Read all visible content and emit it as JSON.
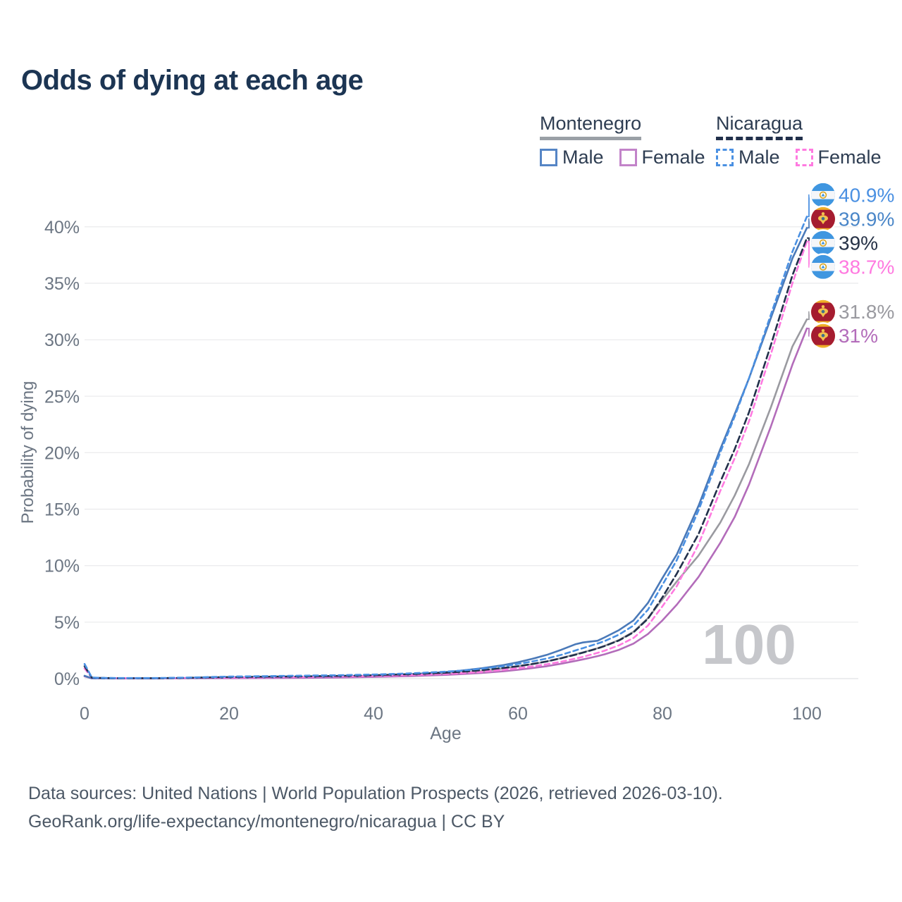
{
  "title": "Odds of dying at each age",
  "legend": {
    "groups": [
      {
        "country": "Montenegro",
        "underline_color": "#9aa0a6",
        "underline_style": "solid",
        "items": [
          {
            "label": "Male",
            "color": "#5585c5",
            "dashed": false
          },
          {
            "label": "Female",
            "color": "#c283c9",
            "dashed": false
          }
        ]
      },
      {
        "country": "Nicaragua",
        "underline_color": "#22304b",
        "underline_style": "dashed",
        "items": [
          {
            "label": "Male",
            "color": "#4a90e2",
            "dashed": true
          },
          {
            "label": "Female",
            "color": "#ff7ae0",
            "dashed": true
          }
        ]
      }
    ]
  },
  "watermark": "100",
  "footer": {
    "line1": "Data sources: United Nations | World Population Prospects (2026, retrieved 2026-03-10).",
    "line2": "GeoRank.org/life-expectancy/montenegro/nicaragua | CC BY"
  },
  "chart_data": {
    "type": "line",
    "title": "Odds of dying at each age",
    "xlabel": "Age",
    "ylabel": "Probability of dying",
    "xlim": [
      0,
      100
    ],
    "ylim": [
      0,
      42
    ],
    "grid": true,
    "legend_position": "top-right",
    "x_ticks": [
      0,
      20,
      40,
      60,
      80,
      100
    ],
    "y_ticks": [
      0,
      5,
      10,
      15,
      20,
      25,
      30,
      35,
      40
    ],
    "y_tick_labels": [
      "0%",
      "5%",
      "10%",
      "15%",
      "20%",
      "25%",
      "30%",
      "35%",
      "40%"
    ],
    "ages": [
      0,
      1,
      2,
      5,
      10,
      15,
      20,
      25,
      30,
      35,
      40,
      45,
      50,
      52,
      55,
      58,
      60,
      62,
      64,
      66,
      68,
      69,
      70,
      71,
      72,
      74,
      76,
      78,
      80,
      82,
      85,
      88,
      90,
      92,
      95,
      98,
      100
    ],
    "series": [
      {
        "name": "Nicaragua Male",
        "country": "nicaragua",
        "sex": "male",
        "color": "#4a90e2",
        "dashed": true,
        "dash_pattern": "7 5",
        "end_label": "40.9%",
        "label_color": "#4a90e2",
        "end_value": 40.9,
        "values": [
          1.3,
          0.1,
          0.07,
          0.05,
          0.05,
          0.1,
          0.18,
          0.22,
          0.26,
          0.3,
          0.36,
          0.46,
          0.62,
          0.7,
          0.88,
          1.1,
          1.3,
          1.52,
          1.78,
          2.1,
          2.5,
          2.7,
          2.9,
          3.1,
          3.32,
          3.9,
          4.7,
          6.1,
          8.3,
          10.5,
          14.9,
          20.0,
          23.2,
          26.6,
          32.2,
          37.8,
          40.9
        ]
      },
      {
        "name": "Montenegro Male",
        "country": "montenegro",
        "sex": "male",
        "color": "#4a79b8",
        "dashed": false,
        "dash_pattern": "",
        "end_label": "39.9%",
        "label_color": "#4a86c8",
        "end_value": 39.9,
        "values": [
          0.25,
          0.03,
          0.02,
          0.02,
          0.02,
          0.05,
          0.09,
          0.11,
          0.14,
          0.18,
          0.26,
          0.38,
          0.58,
          0.7,
          0.92,
          1.2,
          1.45,
          1.75,
          2.1,
          2.55,
          3.05,
          3.2,
          3.28,
          3.35,
          3.65,
          4.3,
          5.15,
          6.7,
          8.9,
          11.0,
          15.3,
          20.3,
          23.4,
          26.6,
          31.9,
          37.2,
          39.9
        ]
      },
      {
        "name": "Nicaragua Total",
        "country": "nicaragua",
        "sex": "total",
        "color": "#22304b",
        "dashed": true,
        "dash_pattern": "9 5",
        "end_label": "39%",
        "label_color": "#263247",
        "end_value": 39.0,
        "values": [
          1.1,
          0.09,
          0.06,
          0.04,
          0.04,
          0.08,
          0.14,
          0.17,
          0.2,
          0.24,
          0.3,
          0.39,
          0.52,
          0.6,
          0.75,
          0.95,
          1.1,
          1.3,
          1.52,
          1.8,
          2.12,
          2.3,
          2.48,
          2.67,
          2.88,
          3.38,
          4.1,
          5.3,
          7.2,
          9.3,
          12.8,
          17.4,
          20.3,
          23.6,
          29.5,
          35.7,
          39.0
        ]
      },
      {
        "name": "Nicaragua Female",
        "country": "nicaragua",
        "sex": "female",
        "color": "#ff7ae0",
        "dashed": true,
        "dash_pattern": "7 5",
        "end_label": "38.7%",
        "label_color": "#ff7ae0",
        "end_value": 38.7,
        "values": [
          0.9,
          0.08,
          0.05,
          0.04,
          0.03,
          0.06,
          0.09,
          0.11,
          0.14,
          0.18,
          0.24,
          0.31,
          0.42,
          0.48,
          0.6,
          0.78,
          0.92,
          1.08,
          1.27,
          1.5,
          1.78,
          1.93,
          2.1,
          2.28,
          2.47,
          2.95,
          3.6,
          4.7,
          6.4,
          8.2,
          11.9,
          16.6,
          19.5,
          22.8,
          28.7,
          35.0,
          38.7
        ]
      },
      {
        "name": "Montenegro Total",
        "country": "montenegro",
        "sex": "total",
        "color": "#9a9aa0",
        "dashed": false,
        "dash_pattern": "",
        "end_label": "31.8%",
        "label_color": "#9a9aa0",
        "end_value": 31.8,
        "values": [
          0.22,
          0.03,
          0.02,
          0.02,
          0.02,
          0.04,
          0.07,
          0.09,
          0.11,
          0.14,
          0.2,
          0.29,
          0.43,
          0.51,
          0.66,
          0.9,
          1.08,
          1.28,
          1.52,
          1.82,
          2.16,
          2.33,
          2.5,
          2.68,
          2.9,
          3.42,
          4.15,
          5.35,
          7.0,
          8.6,
          10.9,
          13.8,
          16.2,
          19.0,
          24.0,
          29.4,
          31.8
        ]
      },
      {
        "name": "Montenegro Female",
        "country": "montenegro",
        "sex": "female",
        "color": "#b36cba",
        "dashed": false,
        "dash_pattern": "",
        "end_label": "31%",
        "label_color": "#b36cba",
        "end_value": 31.0,
        "values": [
          0.2,
          0.02,
          0.02,
          0.01,
          0.01,
          0.03,
          0.04,
          0.05,
          0.07,
          0.1,
          0.15,
          0.22,
          0.33,
          0.39,
          0.5,
          0.65,
          0.78,
          0.93,
          1.1,
          1.32,
          1.57,
          1.7,
          1.84,
          1.99,
          2.15,
          2.55,
          3.1,
          3.95,
          5.15,
          6.55,
          9.0,
          12.0,
          14.3,
          17.2,
          22.3,
          27.8,
          31.0
        ]
      }
    ],
    "colors": {
      "grid": "#ebecee",
      "grid_zero": "#e0e2e5",
      "axis_text": "#6c7683",
      "watermark": "#c6c7cb",
      "flag_nicaragua_blue": "#3f96e0",
      "flag_nicaragua_white": "#f4f6f9",
      "flag_montenegro_red": "#a51c30",
      "flag_montenegro_gold": "#efaf28"
    }
  }
}
